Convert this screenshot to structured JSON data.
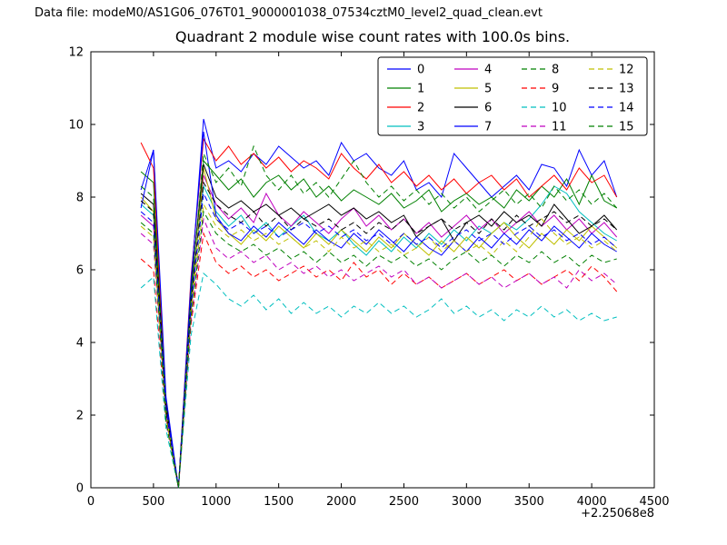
{
  "header": {
    "data_file": "Data file: modeM0/AS1G06_076T01_9000001038_07534cztM0_level2_quad_clean.evt"
  },
  "chart_data": {
    "type": "line",
    "title": "Quadrant 2 module wise count rates with 100.0s bins.",
    "xlabel": "",
    "ylabel": "",
    "x_axis_offset_label": "+2.25068e8",
    "xlim": [
      0,
      4500
    ],
    "ylim": [
      0,
      12
    ],
    "xticks": [
      0,
      500,
      1000,
      1500,
      2000,
      2500,
      3000,
      3500,
      4000,
      4500
    ],
    "yticks": [
      0,
      2,
      4,
      6,
      8,
      10,
      12
    ],
    "grid": false,
    "legend_position": "upper center",
    "x": [
      400,
      500,
      600,
      700,
      800,
      900,
      1000,
      1100,
      1200,
      1300,
      1400,
      1500,
      1600,
      1700,
      1800,
      1900,
      2000,
      2100,
      2200,
      2300,
      2400,
      2500,
      2600,
      2700,
      2800,
      2900,
      3000,
      3100,
      3200,
      3300,
      3400,
      3500,
      3600,
      3700,
      3800,
      3900,
      4000,
      4100,
      4200
    ],
    "series": [
      {
        "name": "0",
        "color": "#0000ff",
        "style": "solid",
        "values": [
          8.2,
          9.3,
          2.0,
          0.0,
          5.6,
          10.15,
          8.8,
          9.0,
          8.7,
          9.2,
          8.9,
          9.4,
          9.1,
          8.8,
          9.0,
          8.6,
          9.5,
          9.0,
          9.2,
          8.8,
          8.6,
          9.0,
          8.2,
          8.4,
          8.0,
          9.2,
          8.8,
          8.4,
          8.0,
          8.3,
          8.6,
          8.2,
          8.9,
          8.8,
          8.3,
          9.3,
          8.6,
          9.0,
          8.0
        ]
      },
      {
        "name": "1",
        "color": "#008000",
        "style": "solid",
        "values": [
          8.7,
          8.4,
          2.2,
          0.0,
          5.4,
          9.0,
          8.6,
          8.2,
          8.5,
          8.0,
          8.4,
          8.6,
          8.2,
          8.5,
          8.0,
          8.3,
          7.9,
          8.2,
          8.0,
          7.8,
          8.1,
          7.7,
          7.9,
          8.2,
          7.6,
          7.9,
          8.1,
          7.8,
          8.0,
          7.7,
          8.2,
          7.9,
          8.3,
          8.0,
          8.5,
          7.8,
          8.6,
          7.9,
          7.7
        ]
      },
      {
        "name": "2",
        "color": "#ff0000",
        "style": "solid",
        "values": [
          9.5,
          8.8,
          2.4,
          0.0,
          5.8,
          9.6,
          9.0,
          9.4,
          8.9,
          9.2,
          8.8,
          9.1,
          8.7,
          9.0,
          8.8,
          8.5,
          9.2,
          8.8,
          8.5,
          8.9,
          8.4,
          8.7,
          8.3,
          8.6,
          8.2,
          8.5,
          8.1,
          8.4,
          8.6,
          8.2,
          8.5,
          8.0,
          8.3,
          8.6,
          8.2,
          8.8,
          8.4,
          8.6,
          8.0
        ]
      },
      {
        "name": "3",
        "color": "#00bfbf",
        "style": "solid",
        "values": [
          7.8,
          7.5,
          2.0,
          0.0,
          5.2,
          8.3,
          7.6,
          7.2,
          7.5,
          7.0,
          7.3,
          6.9,
          7.2,
          7.5,
          7.0,
          6.8,
          7.1,
          6.7,
          6.4,
          6.8,
          6.5,
          6.9,
          6.6,
          7.0,
          6.7,
          7.1,
          6.8,
          7.2,
          7.0,
          7.3,
          7.1,
          7.4,
          7.8,
          8.3,
          8.1,
          7.6,
          7.3,
          7.0,
          6.8
        ]
      },
      {
        "name": "4",
        "color": "#bf00bf",
        "style": "solid",
        "values": [
          7.5,
          7.2,
          2.1,
          0.0,
          5.0,
          8.6,
          7.8,
          7.4,
          7.7,
          7.3,
          8.1,
          7.5,
          7.2,
          7.6,
          7.3,
          7.0,
          7.4,
          7.7,
          7.2,
          7.5,
          7.1,
          7.4,
          7.0,
          7.3,
          6.9,
          7.2,
          7.5,
          7.1,
          7.4,
          7.0,
          7.3,
          7.6,
          7.2,
          7.5,
          7.1,
          7.4,
          7.0,
          7.3,
          6.9
        ]
      },
      {
        "name": "5",
        "color": "#bfbf00",
        "style": "solid",
        "values": [
          8.0,
          7.6,
          1.9,
          0.0,
          4.8,
          8.8,
          7.4,
          7.0,
          6.7,
          7.1,
          6.8,
          7.2,
          6.9,
          6.6,
          7.0,
          6.7,
          7.1,
          6.8,
          6.5,
          6.9,
          6.6,
          7.0,
          6.7,
          6.4,
          6.8,
          6.5,
          6.9,
          6.6,
          7.0,
          7.3,
          6.9,
          6.6,
          7.0,
          6.7,
          7.1,
          6.8,
          7.2,
          6.9,
          6.6
        ]
      },
      {
        "name": "6",
        "color": "#000000",
        "style": "solid",
        "values": [
          8.1,
          7.8,
          2.3,
          0.0,
          5.5,
          8.9,
          8.0,
          7.7,
          7.9,
          7.6,
          7.8,
          7.5,
          7.7,
          7.4,
          7.6,
          7.8,
          7.5,
          7.7,
          7.4,
          7.6,
          7.3,
          7.5,
          6.9,
          7.2,
          7.4,
          6.8,
          7.3,
          7.5,
          7.2,
          7.6,
          7.3,
          7.5,
          7.2,
          7.8,
          7.4,
          7.0,
          7.2,
          7.5,
          7.1
        ]
      },
      {
        "name": "7",
        "color": "#0000ff",
        "style": "solid",
        "values": [
          7.7,
          9.3,
          2.5,
          0.0,
          5.7,
          9.8,
          7.5,
          7.0,
          6.8,
          7.2,
          6.9,
          7.3,
          7.0,
          6.7,
          7.1,
          6.8,
          6.6,
          7.0,
          6.7,
          7.1,
          6.8,
          6.5,
          6.9,
          6.6,
          6.4,
          6.8,
          6.5,
          6.9,
          6.6,
          7.0,
          6.7,
          7.1,
          6.8,
          7.2,
          6.9,
          6.6,
          7.0,
          6.7,
          6.5
        ]
      },
      {
        "name": "8",
        "color": "#008000",
        "style": "dashed",
        "values": [
          8.3,
          8.0,
          2.2,
          0.0,
          5.3,
          9.2,
          8.4,
          8.8,
          8.3,
          9.4,
          8.6,
          8.2,
          8.6,
          8.1,
          8.4,
          8.0,
          8.5,
          9.0,
          8.4,
          8.0,
          8.3,
          7.9,
          8.2,
          7.8,
          8.1,
          7.7,
          8.0,
          7.6,
          7.9,
          8.2,
          7.8,
          8.1,
          7.7,
          8.3,
          7.9,
          8.2,
          7.8,
          8.1,
          7.7
        ]
      },
      {
        "name": "9",
        "color": "#ff0000",
        "style": "dashed",
        "values": [
          6.3,
          6.0,
          1.8,
          0.0,
          4.5,
          7.0,
          6.2,
          5.9,
          6.1,
          5.8,
          6.0,
          5.7,
          5.9,
          6.1,
          5.8,
          6.0,
          5.7,
          6.2,
          5.8,
          6.0,
          5.6,
          5.9,
          5.6,
          5.8,
          5.5,
          5.7,
          5.9,
          5.6,
          5.8,
          6.0,
          5.7,
          5.9,
          5.6,
          5.8,
          6.0,
          5.7,
          6.1,
          5.8,
          5.4
        ]
      },
      {
        "name": "10",
        "color": "#00bfbf",
        "style": "dashed",
        "values": [
          5.5,
          5.8,
          1.6,
          0.0,
          4.2,
          5.9,
          5.6,
          5.2,
          5.0,
          5.3,
          4.9,
          5.2,
          4.8,
          5.1,
          4.8,
          5.0,
          4.7,
          5.0,
          4.8,
          5.1,
          4.8,
          5.0,
          4.7,
          4.9,
          5.2,
          4.8,
          5.0,
          4.7,
          4.9,
          4.6,
          4.9,
          4.7,
          5.0,
          4.7,
          4.9,
          4.6,
          4.8,
          4.6,
          4.7
        ]
      },
      {
        "name": "11",
        "color": "#bf00bf",
        "style": "dashed",
        "values": [
          7.0,
          6.7,
          1.9,
          0.0,
          4.6,
          7.4,
          6.6,
          6.3,
          6.5,
          6.2,
          6.4,
          6.0,
          6.2,
          5.9,
          6.1,
          5.8,
          6.0,
          5.7,
          5.9,
          6.1,
          5.8,
          6.0,
          5.6,
          5.8,
          5.5,
          5.7,
          5.9,
          5.6,
          5.8,
          5.5,
          5.7,
          5.9,
          5.6,
          5.8,
          5.5,
          6.0,
          5.7,
          5.9,
          5.6
        ]
      },
      {
        "name": "12",
        "color": "#bfbf00",
        "style": "dashed",
        "values": [
          7.2,
          6.9,
          2.0,
          0.0,
          4.9,
          7.8,
          7.2,
          6.9,
          7.1,
          6.8,
          7.0,
          6.7,
          6.9,
          6.6,
          6.8,
          6.5,
          6.9,
          6.6,
          6.8,
          6.5,
          6.7,
          6.4,
          6.6,
          6.9,
          6.5,
          6.8,
          6.5,
          6.7,
          6.4,
          6.8,
          6.5,
          6.9,
          7.4,
          7.0,
          6.7,
          6.9,
          6.6,
          6.8,
          6.5
        ]
      },
      {
        "name": "13",
        "color": "#000000",
        "style": "dashed",
        "values": [
          7.9,
          7.6,
          2.1,
          0.0,
          5.1,
          8.4,
          7.8,
          7.5,
          7.3,
          7.6,
          7.2,
          7.5,
          7.1,
          7.4,
          7.2,
          7.4,
          7.1,
          7.3,
          7.0,
          7.3,
          7.1,
          7.4,
          7.0,
          7.2,
          7.4,
          7.1,
          7.3,
          7.0,
          7.4,
          7.1,
          7.5,
          7.2,
          7.4,
          7.6,
          7.3,
          7.5,
          7.2,
          7.4,
          7.1
        ]
      },
      {
        "name": "14",
        "color": "#0000ff",
        "style": "dashed",
        "values": [
          7.6,
          7.3,
          2.2,
          0.0,
          5.0,
          8.1,
          7.4,
          7.1,
          7.3,
          7.0,
          7.2,
          6.9,
          7.1,
          7.3,
          7.0,
          7.2,
          6.9,
          7.1,
          6.8,
          7.0,
          6.7,
          7.0,
          6.7,
          6.9,
          6.6,
          6.9,
          7.1,
          6.8,
          7.0,
          6.7,
          7.0,
          7.2,
          6.9,
          7.1,
          6.8,
          7.0,
          6.7,
          6.9,
          6.6
        ]
      },
      {
        "name": "15",
        "color": "#008000",
        "style": "dashed",
        "values": [
          7.3,
          7.0,
          1.8,
          0.0,
          4.7,
          7.6,
          7.0,
          6.7,
          6.5,
          6.7,
          6.4,
          6.6,
          6.3,
          6.5,
          6.2,
          6.5,
          6.2,
          6.4,
          6.1,
          6.4,
          6.2,
          6.4,
          6.1,
          6.3,
          6.0,
          6.3,
          6.5,
          6.2,
          6.4,
          6.1,
          6.4,
          6.2,
          6.5,
          6.2,
          6.4,
          6.1,
          6.4,
          6.2,
          6.3
        ]
      }
    ]
  }
}
